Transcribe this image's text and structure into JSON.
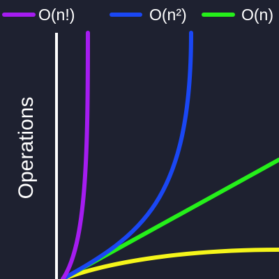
{
  "chart_data": {
    "type": "line",
    "title": "",
    "xlabel": "",
    "ylabel": "Operations",
    "grid": false,
    "legend_position": "top",
    "background_color": "#1e2130",
    "axis_color": "#ffffff",
    "series": [
      {
        "name": "O(n!)",
        "color": "#a51cf0",
        "function": "factorial"
      },
      {
        "name": "O(n²)",
        "color": "#1a47f4",
        "function": "quadratic"
      },
      {
        "name": "O(n)",
        "color": "#25f01a",
        "function": "linear"
      },
      {
        "name": "",
        "color": "#f5f51a",
        "function": "logarithmic"
      }
    ]
  }
}
